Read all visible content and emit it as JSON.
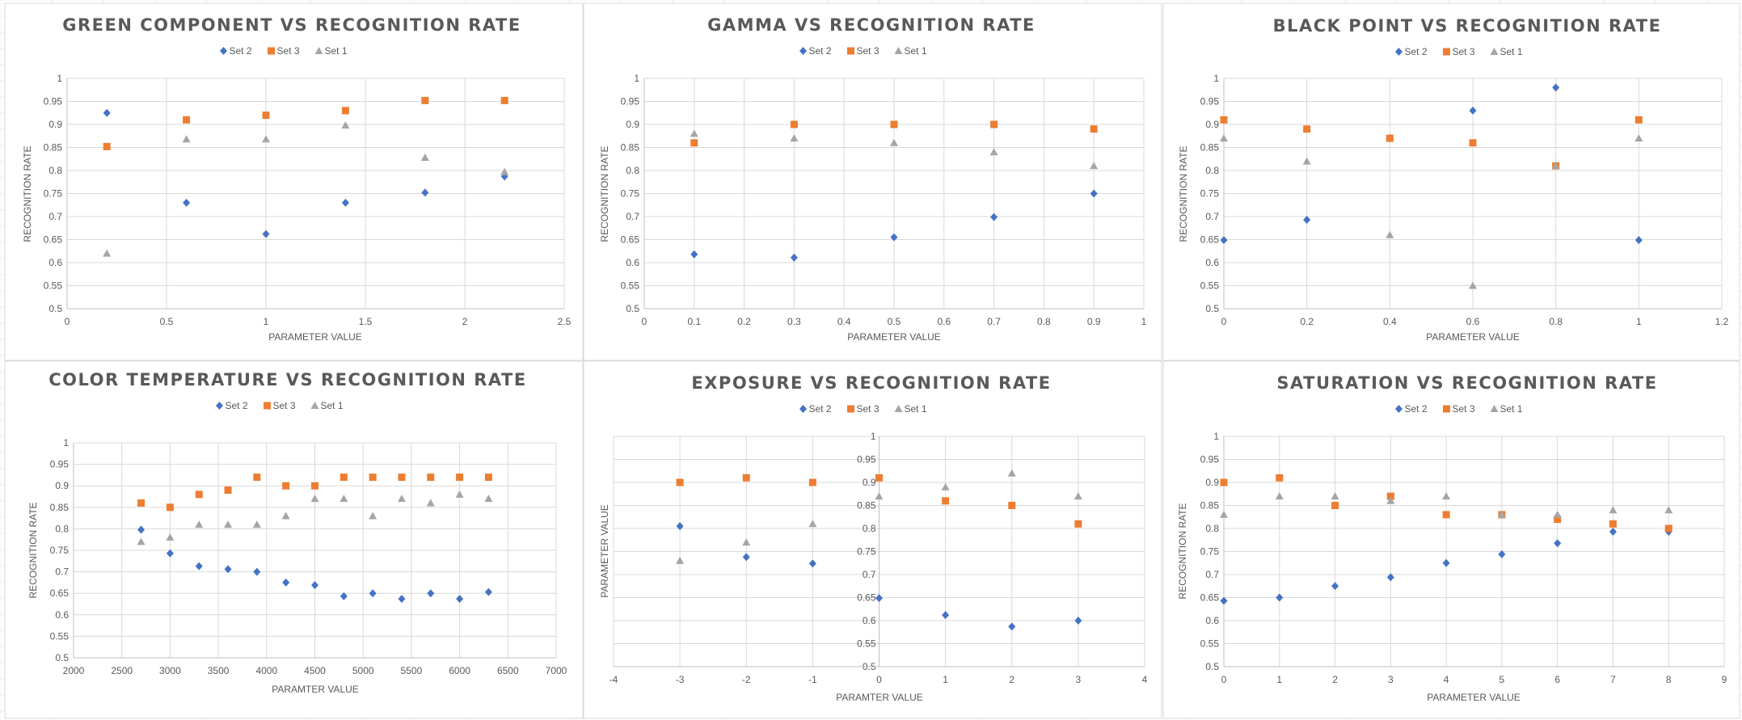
{
  "colors": {
    "Set 2": "#4472C4",
    "Set 3": "#ED7D31",
    "Set 1": "#A5A5A5",
    "grid": "#D9D9D9",
    "text": "#595959"
  },
  "chart_data": [
    {
      "type": "scatter",
      "title": "GREEN COMPONENT VS RECOGNITION RATE",
      "xlabel": "PARAMETER VALUE",
      "ylabel": "RECOGNITION RATE",
      "xlim": [
        0,
        2.5
      ],
      "xstep": 0.5,
      "ylim": [
        0.5,
        1
      ],
      "ystep": 0.05,
      "grid": true,
      "legend": "top",
      "x_ticks": [
        "0",
        "0.5",
        "1",
        "1.5",
        "2",
        "2.5"
      ],
      "y_ticks": [
        "0.5",
        "0.55",
        "0.6",
        "0.65",
        "0.7",
        "0.75",
        "0.8",
        "0.85",
        "0.9",
        "0.95",
        "1"
      ],
      "series": [
        {
          "name": "Set 2",
          "marker": "diamond",
          "x": [
            0.2,
            0.6,
            1.0,
            1.4,
            1.8,
            2.2
          ],
          "y": [
            0.925,
            0.73,
            0.662,
            0.73,
            0.752,
            0.787
          ]
        },
        {
          "name": "Set 3",
          "marker": "square",
          "x": [
            0.2,
            0.6,
            1.0,
            1.4,
            1.8,
            2.2
          ],
          "y": [
            0.852,
            0.91,
            0.92,
            0.93,
            0.952,
            0.952
          ]
        },
        {
          "name": "Set 1",
          "marker": "triangle",
          "x": [
            0.2,
            0.6,
            1.0,
            1.4,
            1.8,
            2.2
          ],
          "y": [
            0.62,
            0.868,
            0.868,
            0.898,
            0.828,
            0.797
          ]
        }
      ]
    },
    {
      "type": "scatter",
      "title": "GAMMA VS RECOGNITION RATE",
      "xlabel": "PARAMETER VALUE",
      "ylabel": "RECOGNITION RATE",
      "xlim": [
        0,
        1
      ],
      "xstep": 0.1,
      "ylim": [
        0.5,
        1
      ],
      "ystep": 0.05,
      "grid": true,
      "legend": "top",
      "x_ticks": [
        "0",
        "0.1",
        "0.2",
        "0.3",
        "0.4",
        "0.5",
        "0.6",
        "0.7",
        "0.8",
        "0.9",
        "1"
      ],
      "y_ticks": [
        "0.5",
        "0.55",
        "0.6",
        "0.65",
        "0.7",
        "0.75",
        "0.8",
        "0.85",
        "0.9",
        "0.95",
        "1"
      ],
      "series": [
        {
          "name": "Set 2",
          "marker": "diamond",
          "x": [
            0.1,
            0.3,
            0.5,
            0.7,
            0.9
          ],
          "y": [
            0.618,
            0.611,
            0.655,
            0.699,
            0.75
          ]
        },
        {
          "name": "Set 3",
          "marker": "square",
          "x": [
            0.1,
            0.3,
            0.5,
            0.7,
            0.9
          ],
          "y": [
            0.86,
            0.9,
            0.9,
            0.9,
            0.89
          ]
        },
        {
          "name": "Set 1",
          "marker": "triangle",
          "x": [
            0.1,
            0.3,
            0.5,
            0.7,
            0.9
          ],
          "y": [
            0.88,
            0.87,
            0.86,
            0.84,
            0.81
          ]
        }
      ]
    },
    {
      "type": "scatter",
      "title": "BLACK POINT VS RECOGNITION RATE",
      "xlabel": "PARAMETER VALUE",
      "ylabel": "RECOGNITION RATE",
      "xlim": [
        0,
        1.2
      ],
      "xstep": 0.2,
      "ylim": [
        0.5,
        1
      ],
      "ystep": 0.05,
      "grid": true,
      "legend": "top",
      "x_ticks": [
        "0",
        "0.2",
        "0.4",
        "0.6",
        "0.8",
        "1",
        "1.2"
      ],
      "y_ticks": [
        "0.5",
        "0.55",
        "0.6",
        "0.65",
        "0.7",
        "0.75",
        "0.8",
        "0.85",
        "0.9",
        "0.95",
        "1"
      ],
      "series": [
        {
          "name": "Set 2",
          "marker": "diamond",
          "x": [
            0,
            0.2,
            0.4,
            0.6,
            0.8,
            1.0
          ],
          "y": [
            0.649,
            0.693,
            0.87,
            0.93,
            0.98,
            0.649
          ]
        },
        {
          "name": "Set 3",
          "marker": "square",
          "x": [
            0,
            0.2,
            0.4,
            0.6,
            0.8,
            1.0
          ],
          "y": [
            0.91,
            0.89,
            0.87,
            0.86,
            0.81,
            0.91
          ]
        },
        {
          "name": "Set 1",
          "marker": "triangle",
          "x": [
            0,
            0.2,
            0.4,
            0.6,
            0.8,
            1.0
          ],
          "y": [
            0.87,
            0.82,
            0.66,
            0.55,
            0.81,
            0.87
          ]
        }
      ]
    },
    {
      "type": "scatter",
      "title": "COLOR TEMPERATURE VS RECOGNITION RATE",
      "xlabel": "PARAMTER VALUE",
      "ylabel": "RECOGNITION RATE",
      "xlim": [
        2000,
        7000
      ],
      "xstep": 500,
      "ylim": [
        0.5,
        1
      ],
      "ystep": 0.05,
      "grid": true,
      "legend": "top",
      "x_ticks": [
        "2000",
        "2500",
        "3000",
        "3500",
        "4000",
        "4500",
        "5000",
        "5500",
        "6000",
        "6500",
        "7000"
      ],
      "y_ticks": [
        "0.5",
        "0.55",
        "0.6",
        "0.65",
        "0.7",
        "0.75",
        "0.8",
        "0.85",
        "0.9",
        "0.95",
        "1"
      ],
      "series": [
        {
          "name": "Set 2",
          "marker": "diamond",
          "x": [
            2700,
            3000,
            3300,
            3600,
            3900,
            4200,
            4500,
            4800,
            5100,
            5400,
            5700,
            6000,
            6300
          ],
          "y": [
            0.798,
            0.743,
            0.713,
            0.706,
            0.7,
            0.675,
            0.669,
            0.643,
            0.65,
            0.637,
            0.65,
            0.637,
            0.653
          ]
        },
        {
          "name": "Set 3",
          "marker": "square",
          "x": [
            2700,
            3000,
            3300,
            3600,
            3900,
            4200,
            4500,
            4800,
            5100,
            5400,
            5700,
            6000,
            6300
          ],
          "y": [
            0.86,
            0.85,
            0.88,
            0.89,
            0.92,
            0.9,
            0.9,
            0.92,
            0.92,
            0.92,
            0.92,
            0.92,
            0.92
          ]
        },
        {
          "name": "Set 1",
          "marker": "triangle",
          "x": [
            2700,
            3000,
            3300,
            3600,
            3900,
            4200,
            4500,
            4800,
            5100,
            5400,
            5700,
            6000,
            6300
          ],
          "y": [
            0.77,
            0.78,
            0.81,
            0.81,
            0.81,
            0.83,
            0.87,
            0.87,
            0.83,
            0.87,
            0.86,
            0.88,
            0.87
          ]
        }
      ]
    },
    {
      "type": "scatter",
      "title": "EXPOSURE VS RECOGNITION RATE",
      "xlabel": "PARAMTER VALUE",
      "ylabel": "PARAMETER VALUE",
      "xlim": [
        -4,
        4
      ],
      "xstep": 1,
      "ylim": [
        0.5,
        1
      ],
      "ystep": 0.05,
      "grid": true,
      "legend": "top",
      "y_axis_at_zero": true,
      "x_ticks": [
        "-4",
        "-3",
        "-2",
        "-1",
        "0",
        "1",
        "2",
        "3",
        "4"
      ],
      "y_ticks": [
        "0.5",
        "0.55",
        "0.6",
        "0.65",
        "0.7",
        "0.75",
        "0.8",
        "0.85",
        "0.9",
        "0.95",
        "1"
      ],
      "series": [
        {
          "name": "Set 2",
          "marker": "diamond",
          "x": [
            -3,
            -2,
            -1,
            0,
            1,
            2,
            3
          ],
          "y": [
            0.805,
            0.738,
            0.724,
            0.649,
            0.612,
            0.587,
            0.6
          ]
        },
        {
          "name": "Set 3",
          "marker": "square",
          "x": [
            -3,
            -2,
            -1,
            0,
            1,
            2,
            3
          ],
          "y": [
            0.9,
            0.91,
            0.9,
            0.91,
            0.86,
            0.85,
            0.81
          ]
        },
        {
          "name": "Set 1",
          "marker": "triangle",
          "x": [
            -3,
            -2,
            -1,
            0,
            1,
            2,
            3
          ],
          "y": [
            0.73,
            0.77,
            0.81,
            0.87,
            0.89,
            0.92,
            0.87
          ]
        }
      ]
    },
    {
      "type": "scatter",
      "title": "SATURATION VS RECOGNITION RATE",
      "xlabel": "PARAMETER VALUE",
      "ylabel": "RECOGNITION RATE",
      "xlim": [
        0,
        9
      ],
      "xstep": 1,
      "ylim": [
        0.5,
        1
      ],
      "ystep": 0.05,
      "grid": true,
      "legend": "top",
      "x_ticks": [
        "0",
        "1",
        "2",
        "3",
        "4",
        "5",
        "6",
        "7",
        "8",
        "9"
      ],
      "y_ticks": [
        "0.5",
        "0.55",
        "0.6",
        "0.65",
        "0.7",
        "0.75",
        "0.8",
        "0.85",
        "0.9",
        "0.95",
        "1"
      ],
      "series": [
        {
          "name": "Set 2",
          "marker": "diamond",
          "x": [
            0,
            1,
            2,
            3,
            4,
            5,
            6,
            7,
            8
          ],
          "y": [
            0.643,
            0.65,
            0.675,
            0.694,
            0.725,
            0.744,
            0.768,
            0.793,
            0.793
          ]
        },
        {
          "name": "Set 3",
          "marker": "square",
          "x": [
            0,
            1,
            2,
            3,
            4,
            5,
            6,
            7,
            8
          ],
          "y": [
            0.9,
            0.91,
            0.85,
            0.87,
            0.83,
            0.83,
            0.82,
            0.81,
            0.8
          ]
        },
        {
          "name": "Set 1",
          "marker": "triangle",
          "x": [
            0,
            1,
            2,
            3,
            4,
            5,
            6,
            7,
            8
          ],
          "y": [
            0.83,
            0.87,
            0.87,
            0.86,
            0.87,
            0.83,
            0.83,
            0.84,
            0.84
          ]
        }
      ]
    }
  ]
}
